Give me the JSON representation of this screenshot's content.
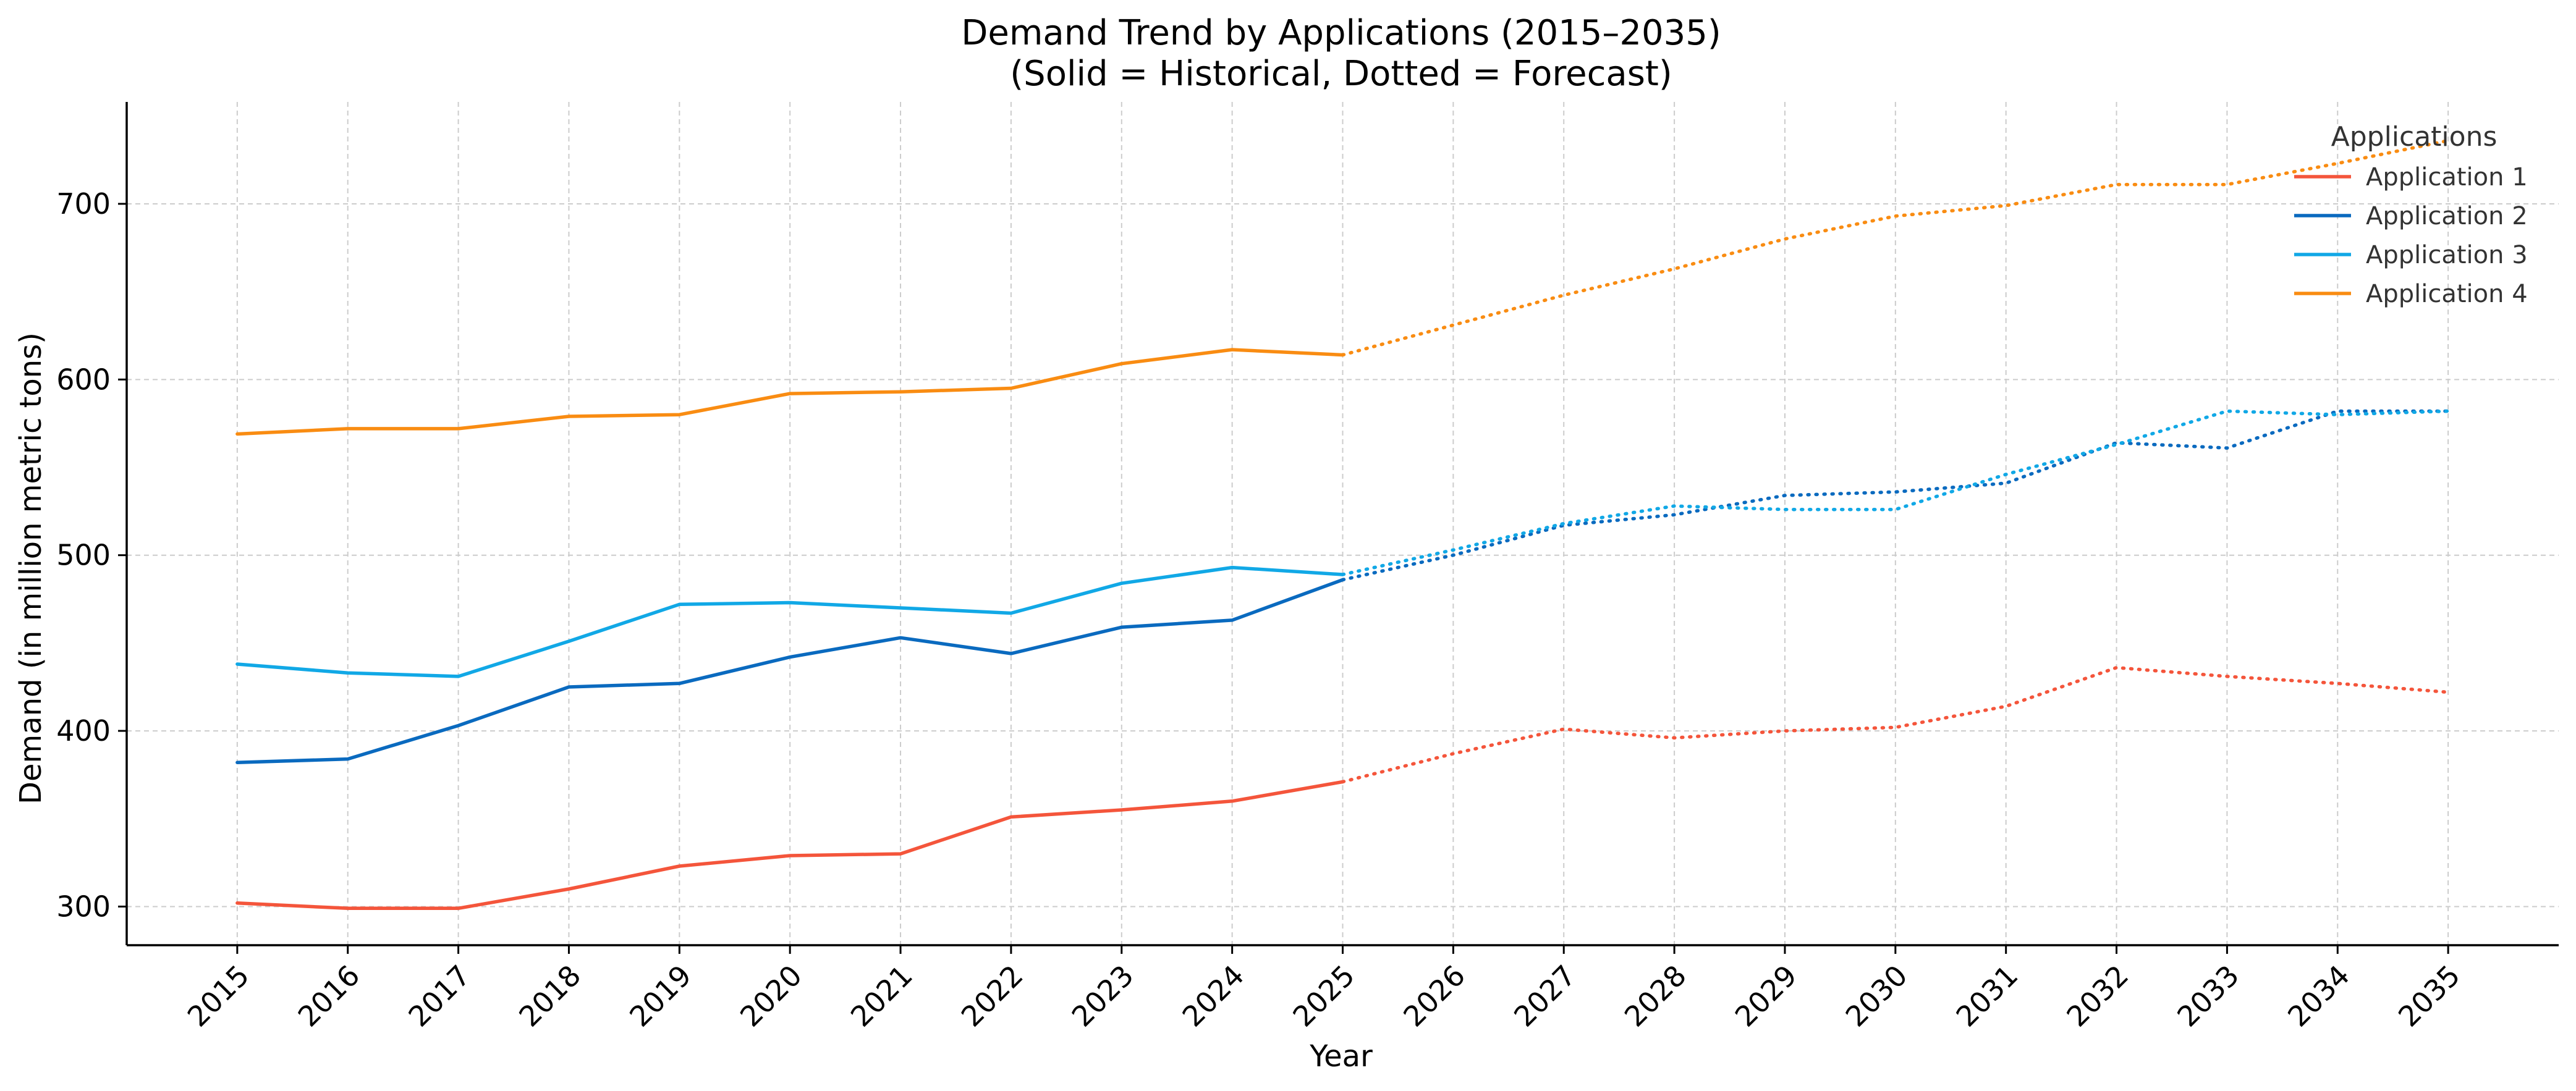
{
  "chart_data": {
    "type": "line",
    "title": "Demand Trend by Applications (2015–2035)",
    "subtitle": "(Solid = Historical, Dotted = Forecast)",
    "xlabel": "Year",
    "ylabel": "Demand (in million metric tons)",
    "x": [
      2015,
      2016,
      2017,
      2018,
      2019,
      2020,
      2021,
      2022,
      2023,
      2024,
      2025,
      2026,
      2027,
      2028,
      2029,
      2030,
      2031,
      2032,
      2033,
      2034,
      2035
    ],
    "historical_end": 2025,
    "xlim": [
      2014.0,
      2036.0
    ],
    "ylim": [
      278,
      758
    ],
    "yticks": [
      300,
      400,
      500,
      600,
      700
    ],
    "grid": true,
    "legend": {
      "title": "Applications",
      "placement": "top-right"
    },
    "series": [
      {
        "name": "Application 1",
        "color": "#f4553b",
        "values": [
          302,
          299,
          299,
          310,
          323,
          329,
          330,
          351,
          355,
          360,
          371,
          387,
          401,
          396,
          400,
          402,
          414,
          436,
          431,
          427,
          422
        ]
      },
      {
        "name": "Application 2",
        "color": "#0a6abf",
        "values": [
          382,
          384,
          403,
          425,
          427,
          442,
          453,
          444,
          459,
          463,
          486,
          500,
          517,
          523,
          534,
          536,
          541,
          564,
          561,
          582,
          582
        ]
      },
      {
        "name": "Application 3",
        "color": "#11a8e6",
        "values": [
          438,
          433,
          431,
          451,
          472,
          473,
          470,
          467,
          484,
          493,
          489,
          503,
          518,
          528,
          526,
          526,
          546,
          563,
          582,
          580,
          582
        ]
      },
      {
        "name": "Application 4",
        "color": "#f98c12",
        "values": [
          569,
          572,
          572,
          579,
          580,
          592,
          593,
          595,
          609,
          617,
          614,
          631,
          648,
          663,
          680,
          693,
          699,
          711,
          711,
          723,
          736
        ]
      }
    ]
  }
}
